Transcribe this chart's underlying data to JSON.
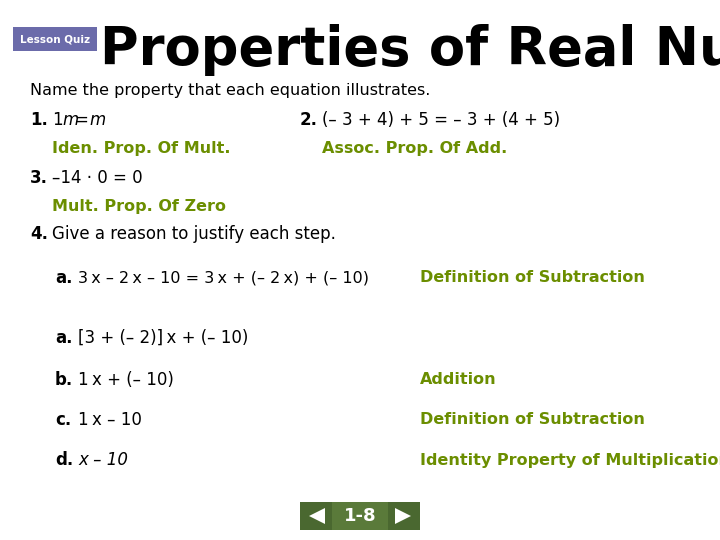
{
  "title": "Properties of Real Numbers",
  "lesson_quiz_label": "Lesson Quiz",
  "lesson_quiz_bg": "#6B6BAA",
  "lesson_quiz_text_color": "#ffffff",
  "title_color": "#000000",
  "title_fontsize": 38,
  "bg_color": "#ffffff",
  "green_color": "#6B8E00",
  "black_color": "#000000",
  "subtitle": "Name the property that each equation illustrates.",
  "nav_label": "1-8",
  "nav_center_bg": "#5A7A3A",
  "nav_arrow_bg": "#4A6830"
}
